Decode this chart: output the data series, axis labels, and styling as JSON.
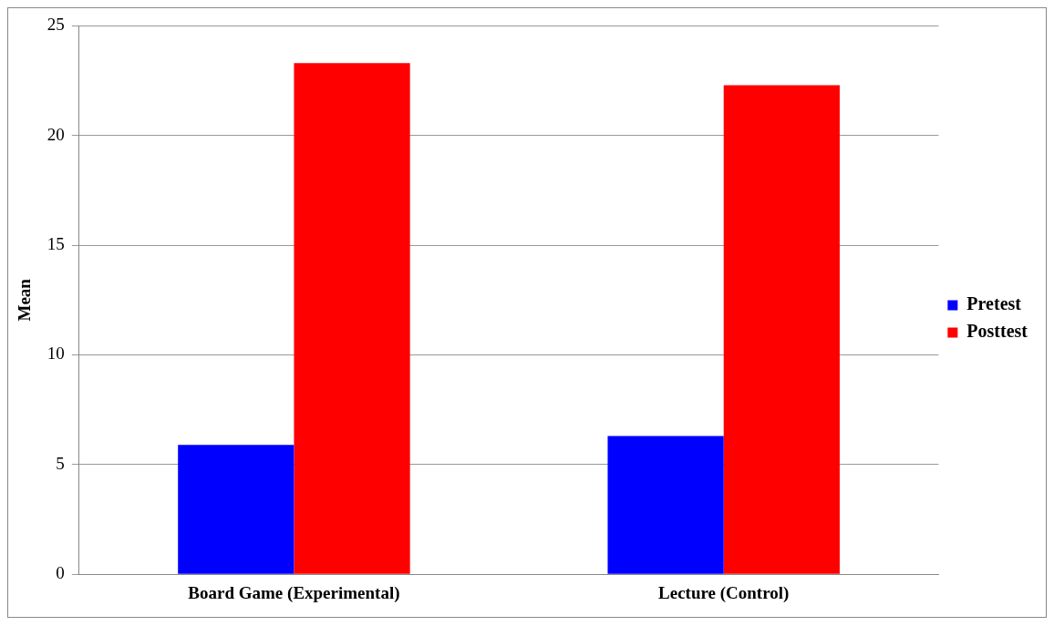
{
  "chart_data": {
    "type": "bar",
    "ylabel": "Mean",
    "categories": [
      "Board Game (Experimental)",
      "Lecture (Control)"
    ],
    "series": [
      {
        "name": "Pretest",
        "color": "#0000ff",
        "values": [
          5.9,
          6.3
        ]
      },
      {
        "name": "Posttest",
        "color": "#ff0000",
        "values": [
          23.3,
          22.3
        ]
      }
    ],
    "ylim": [
      0,
      25
    ],
    "yticks": [
      0,
      5,
      10,
      15,
      20,
      25
    ],
    "grid": "y",
    "legend": "right"
  }
}
